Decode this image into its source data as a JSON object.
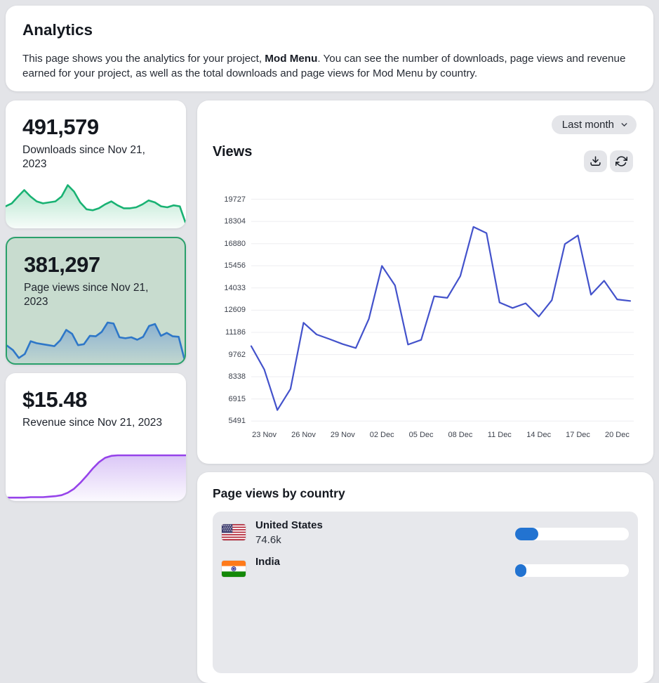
{
  "colors": {
    "page_bg": "#e3e4e8",
    "card_bg": "#ffffff",
    "selected_card_bg": "#c8dccf",
    "selected_card_border": "#2aa06b",
    "chart_line": "#4352cb",
    "grid_line": "#ededf0",
    "progress_fill": "#2273d1",
    "button_bg": "#e4e5e9"
  },
  "header": {
    "title": "Analytics",
    "desc_before": "This page shows you the analytics for your project, ",
    "desc_bold": "Mod Menu",
    "desc_after": ". You can see the number of downloads, page views and revenue earned for your project, as well as the total downloads and page views for Mod Menu by country."
  },
  "stats": [
    {
      "key": "downloads",
      "value": "491,579",
      "label": "Downloads since Nov 21, 2023",
      "selected": false,
      "stroke": "#19b273",
      "fill": "#aee3c9",
      "spark": [
        0.42,
        0.48,
        0.62,
        0.75,
        0.62,
        0.52,
        0.48,
        0.5,
        0.52,
        0.62,
        0.85,
        0.72,
        0.5,
        0.36,
        0.34,
        0.38,
        0.46,
        0.52,
        0.44,
        0.38,
        0.38,
        0.4,
        0.46,
        0.54,
        0.5,
        0.42,
        0.4,
        0.44,
        0.42,
        0.06
      ]
    },
    {
      "key": "page-views",
      "value": "381,297",
      "label": "Page views since Nov 21, 2023",
      "selected": true,
      "stroke": "#2e77c8",
      "fill": "#86add0",
      "spark": [
        0.33,
        0.24,
        0.08,
        0.16,
        0.42,
        0.38,
        0.36,
        0.34,
        0.32,
        0.44,
        0.65,
        0.57,
        0.34,
        0.36,
        0.53,
        0.52,
        0.61,
        0.8,
        0.78,
        0.5,
        0.48,
        0.5,
        0.45,
        0.51,
        0.73,
        0.77,
        0.53,
        0.59,
        0.52,
        0.51,
        0.04
      ]
    },
    {
      "key": "revenue",
      "value": "$15.48",
      "label": "Revenue since Nov 21, 2023",
      "selected": false,
      "stroke": "#9643ea",
      "fill": "#d9c4f6",
      "spark": [
        0.04,
        0.04,
        0.04,
        0.04,
        0.05,
        0.05,
        0.05,
        0.06,
        0.07,
        0.09,
        0.14,
        0.22,
        0.34,
        0.48,
        0.63,
        0.76,
        0.85,
        0.89,
        0.9,
        0.9,
        0.9,
        0.9,
        0.9,
        0.9,
        0.9,
        0.9,
        0.9,
        0.9,
        0.9,
        0.9
      ]
    }
  ],
  "views_panel": {
    "title": "Views",
    "range_label": "Last month",
    "download_button": "download",
    "refresh_button": "refresh"
  },
  "chart_data": {
    "type": "line",
    "title": "Views",
    "x": [
      "22 Nov",
      "23 Nov",
      "24 Nov",
      "25 Nov",
      "26 Nov",
      "27 Nov",
      "28 Nov",
      "29 Nov",
      "30 Nov",
      "01 Dec",
      "02 Dec",
      "03 Dec",
      "04 Dec",
      "05 Dec",
      "06 Dec",
      "07 Dec",
      "08 Dec",
      "09 Dec",
      "10 Dec",
      "11 Dec",
      "12 Dec",
      "13 Dec",
      "14 Dec",
      "15 Dec",
      "16 Dec",
      "17 Dec",
      "18 Dec",
      "19 Dec",
      "20 Dec",
      "21 Dec"
    ],
    "values": [
      10300,
      8800,
      6200,
      7550,
      11800,
      11050,
      10750,
      10430,
      10180,
      12050,
      15450,
      14200,
      10400,
      10700,
      13500,
      13400,
      14800,
      17950,
      17550,
      13100,
      12750,
      13050,
      12200,
      13250,
      16850,
      17400,
      13600,
      14500,
      13300,
      13200
    ],
    "x_tick_labels": [
      "23 Nov",
      "26 Nov",
      "29 Nov",
      "02 Dec",
      "05 Dec",
      "08 Dec",
      "11 Dec",
      "14 Dec",
      "17 Dec",
      "20 Dec"
    ],
    "y_ticks": [
      5491,
      6915,
      8338,
      9762,
      11186,
      12609,
      14033,
      15456,
      16880,
      18304,
      19727
    ],
    "ylim": [
      5491,
      19727
    ],
    "grid": true,
    "legend": "none",
    "line_color": "#4352cb"
  },
  "country_panel": {
    "title": "Page views by country",
    "rows": [
      {
        "country": "United States",
        "value": "74.6k",
        "flag": "us",
        "bar_pct": 20.5
      },
      {
        "country": "India",
        "value": "",
        "flag": "in",
        "bar_pct": 10
      }
    ]
  }
}
